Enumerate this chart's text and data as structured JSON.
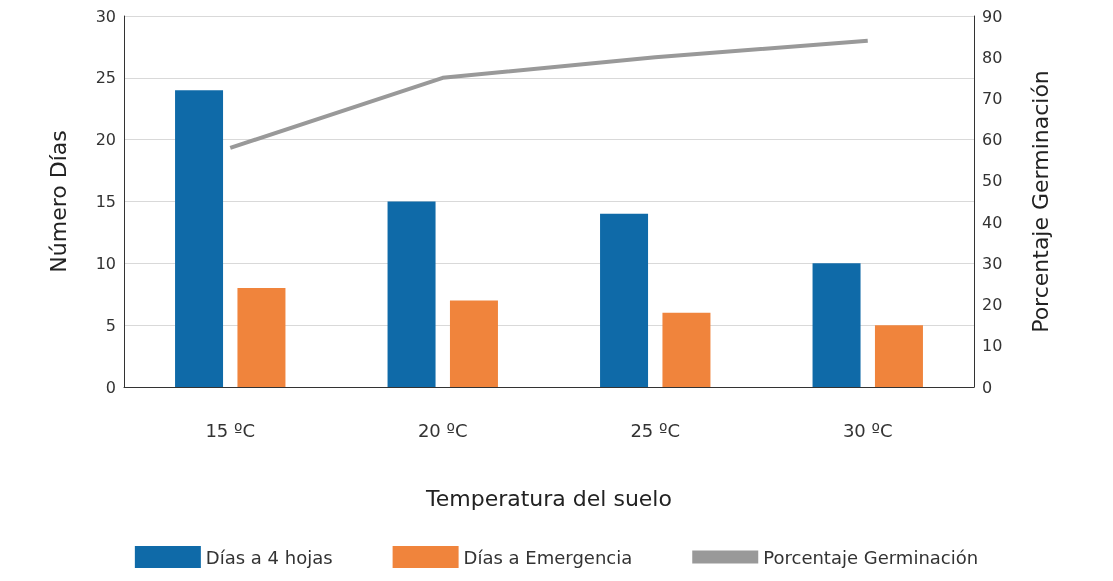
{
  "chart_data": {
    "type": "bar",
    "xlabel": "Temperatura del suelo",
    "ylabel": "Número Días",
    "y2label": "Porcentaje Germinación",
    "categories": [
      "15 ºC",
      "20 ºC",
      "25 ºC",
      "30 ºC"
    ],
    "series": [
      {
        "name": "Días a 4 hojas",
        "color": "#0f6aa8",
        "values": [
          24,
          15,
          14,
          10
        ]
      },
      {
        "name": "Días a Emergencia",
        "color": "#f0843c",
        "values": [
          8,
          7,
          6,
          5
        ]
      },
      {
        "name": "Porcentaje Germinación",
        "type": "line",
        "axis": "y2",
        "color": "#999999",
        "values": [
          58,
          75,
          80,
          84
        ]
      }
    ],
    "ylim": [
      0,
      30
    ],
    "yticks": [
      0,
      5,
      10,
      15,
      20,
      25,
      30
    ],
    "y2lim": [
      0,
      90
    ],
    "y2ticks": [
      0,
      10,
      20,
      30,
      40,
      50,
      60,
      70,
      80,
      90
    ],
    "grid": "y",
    "legend": "bottom",
    "marker": "none"
  }
}
